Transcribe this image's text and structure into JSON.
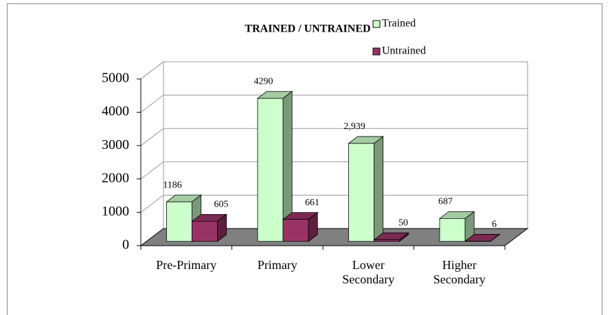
{
  "chart_data": {
    "type": "bar3d",
    "title": "TRAINED / UNTRAINED",
    "categories": [
      "Pre-Primary",
      "Primary",
      "Lower Secondary",
      "Higher Secondary"
    ],
    "series": [
      {
        "name": "Trained",
        "color": "#ccffcc",
        "values": [
          1186,
          4290,
          2939,
          687
        ],
        "value_labels": [
          "1186",
          "4290",
          "2,939",
          "687"
        ]
      },
      {
        "name": "Untrained",
        "color": "#993366",
        "values": [
          605,
          661,
          50,
          6
        ]
      }
    ],
    "ylim": [
      0,
      5000
    ],
    "yticks": [
      0,
      1000,
      2000,
      3000,
      4000,
      5000
    ],
    "grid": true,
    "legend": "top-right"
  }
}
